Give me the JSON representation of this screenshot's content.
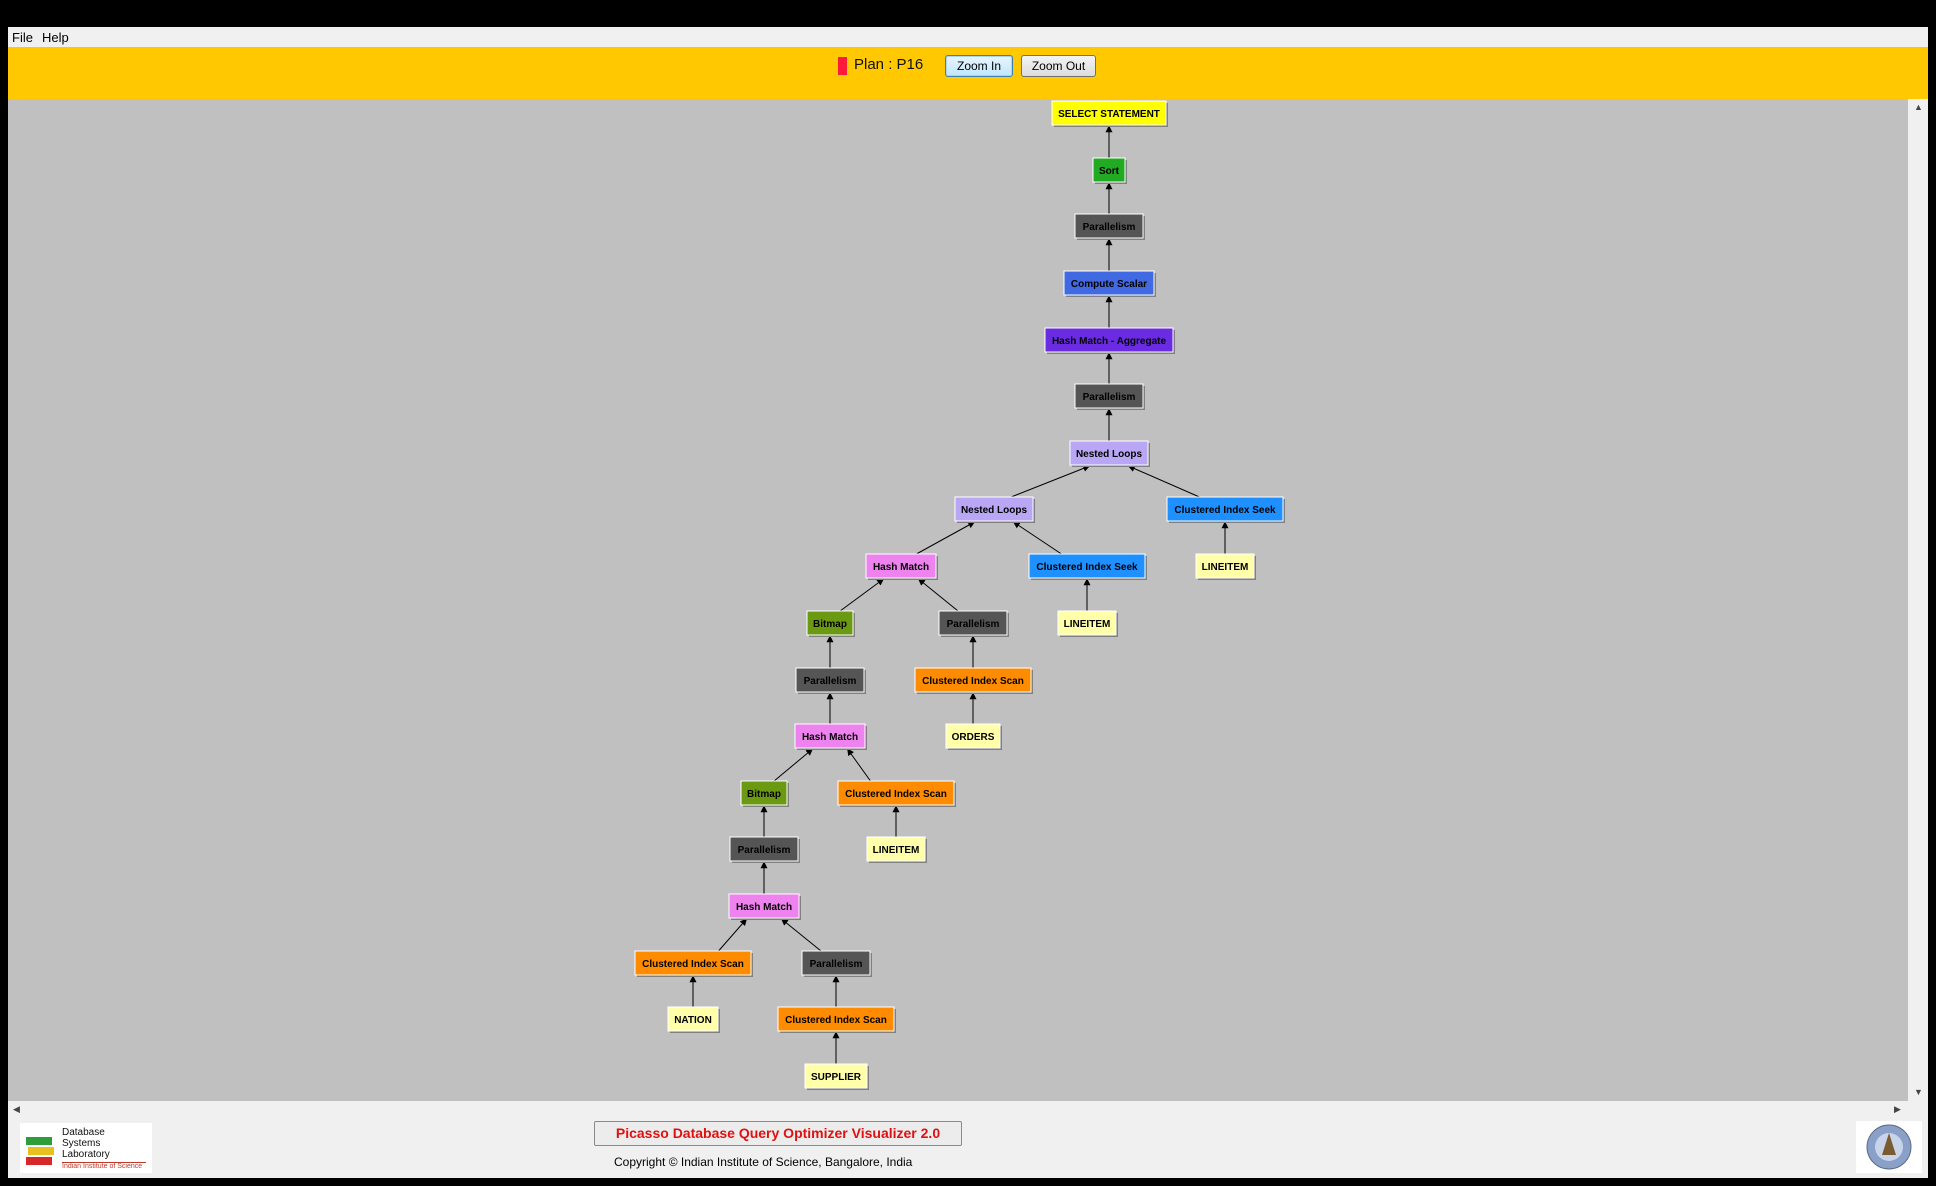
{
  "menu": {
    "items": [
      "File",
      "Help"
    ]
  },
  "toolbar": {
    "plan_label": "Plan : P16",
    "plan_color": "#ff1a3c",
    "zoom_in_label": "Zoom In",
    "zoom_out_label": "Zoom Out"
  },
  "plan_tree": {
    "nodes": [
      {
        "id": "n0",
        "label": "SELECT STATEMENT",
        "color": "#ffff00",
        "text_color": "#000000",
        "parent": null
      },
      {
        "id": "n1",
        "label": "Sort",
        "color": "#22aa22",
        "text_color": "#000000",
        "parent": "n0"
      },
      {
        "id": "n2",
        "label": "Parallelism",
        "color": "#555555",
        "text_color": "#000000",
        "parent": "n1"
      },
      {
        "id": "n3",
        "label": "Compute Scalar",
        "color": "#4169e1",
        "text_color": "#000000",
        "parent": "n2"
      },
      {
        "id": "n4",
        "label": "Hash Match - Aggregate",
        "color": "#6a2be2",
        "text_color": "#000000",
        "parent": "n3"
      },
      {
        "id": "n5",
        "label": "Parallelism",
        "color": "#555555",
        "text_color": "#000000",
        "parent": "n4"
      },
      {
        "id": "n6",
        "label": "Nested Loops",
        "color": "#b9a6f5",
        "text_color": "#000000",
        "parent": "n5"
      },
      {
        "id": "n7",
        "label": "Nested Loops",
        "color": "#b9a6f5",
        "text_color": "#000000",
        "parent": "n6"
      },
      {
        "id": "n8",
        "label": "Clustered Index Seek",
        "color": "#1e90ff",
        "text_color": "#000000",
        "parent": "n6"
      },
      {
        "id": "n9",
        "label": "LINEITEM",
        "color": "#ffffaa",
        "text_color": "#000000",
        "parent": "n8"
      },
      {
        "id": "n10",
        "label": "Hash Match",
        "color": "#ee82ee",
        "text_color": "#000000",
        "parent": "n7"
      },
      {
        "id": "n11",
        "label": "Clustered Index Seek",
        "color": "#1e90ff",
        "text_color": "#000000",
        "parent": "n7"
      },
      {
        "id": "n12",
        "label": "LINEITEM",
        "color": "#ffffaa",
        "text_color": "#000000",
        "parent": "n11"
      },
      {
        "id": "n13",
        "label": "Bitmap",
        "color": "#6b9a12",
        "text_color": "#000000",
        "parent": "n10"
      },
      {
        "id": "n14",
        "label": "Parallelism",
        "color": "#555555",
        "text_color": "#000000",
        "parent": "n10"
      },
      {
        "id": "n15",
        "label": "Clustered Index Scan",
        "color": "#ff8c00",
        "text_color": "#000000",
        "parent": "n14"
      },
      {
        "id": "n16",
        "label": "ORDERS",
        "color": "#ffffaa",
        "text_color": "#000000",
        "parent": "n15"
      },
      {
        "id": "n17",
        "label": "Parallelism",
        "color": "#555555",
        "text_color": "#000000",
        "parent": "n13"
      },
      {
        "id": "n18",
        "label": "Hash Match",
        "color": "#ee82ee",
        "text_color": "#000000",
        "parent": "n17"
      },
      {
        "id": "n19",
        "label": "Bitmap",
        "color": "#6b9a12",
        "text_color": "#000000",
        "parent": "n18"
      },
      {
        "id": "n20",
        "label": "Clustered Index Scan",
        "color": "#ff8c00",
        "text_color": "#000000",
        "parent": "n18"
      },
      {
        "id": "n21",
        "label": "LINEITEM",
        "color": "#ffffaa",
        "text_color": "#000000",
        "parent": "n20"
      },
      {
        "id": "n22",
        "label": "Parallelism",
        "color": "#555555",
        "text_color": "#000000",
        "parent": "n19"
      },
      {
        "id": "n23",
        "label": "Hash Match",
        "color": "#ee82ee",
        "text_color": "#000000",
        "parent": "n22"
      },
      {
        "id": "n24",
        "label": "Clustered Index Scan",
        "color": "#ff8c00",
        "text_color": "#000000",
        "parent": "n23"
      },
      {
        "id": "n25",
        "label": "Parallelism",
        "color": "#555555",
        "text_color": "#000000",
        "parent": "n23"
      },
      {
        "id": "n26",
        "label": "NATION",
        "color": "#ffffaa",
        "text_color": "#000000",
        "parent": "n24"
      },
      {
        "id": "n27",
        "label": "Clustered Index Scan",
        "color": "#ff8c00",
        "text_color": "#000000",
        "parent": "n25"
      },
      {
        "id": "n28",
        "label": "SUPPLIER",
        "color": "#ffffaa",
        "text_color": "#000000",
        "parent": "n27"
      }
    ]
  },
  "footer": {
    "lab_name": "Database Systems Laboratory",
    "lab_sub": "Indian Institute of Science",
    "title": "Picasso Database Query Optimizer Visualizer 2.0",
    "copyright": "Copyright © Indian Institute of Science, Bangalore, India"
  }
}
